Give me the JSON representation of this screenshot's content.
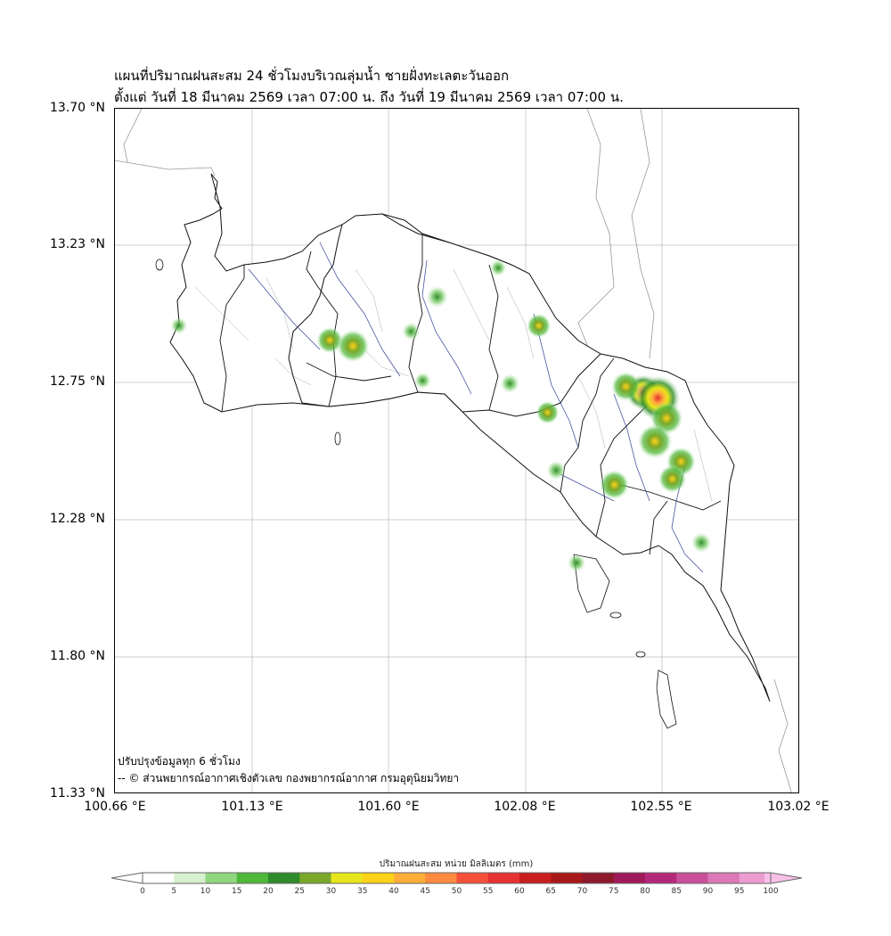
{
  "title": {
    "line1": "แผนที่ปริมาณฝนสะสม 24 ชั่วโมงบริเวณลุ่มน้ำ ชายฝั่งทะเลตะวันออก",
    "line2": "ตั้งแต่ วันที่ 18 มีนาคม 2569 เวลา 07:00 น. ถึง วันที่ 19 มีนาคม 2569 เวลา 07:00 น."
  },
  "axes": {
    "y_ticks": [
      "13.70 °N",
      "13.23 °N",
      "12.75 °N",
      "12.28 °N",
      "11.80 °N",
      "11.33 °N"
    ],
    "x_ticks": [
      "100.66 °E",
      "101.13 °E",
      "101.60 °E",
      "102.08 °E",
      "102.55 °E",
      "103.02 °E"
    ],
    "lat_range": [
      11.33,
      13.7
    ],
    "lon_range": [
      100.66,
      103.02
    ],
    "grid": true
  },
  "notes": {
    "update": "ปรับปรุงข้อมูลทุก 6 ชั่วโมง",
    "credit": "-- © ส่วนพยากรณ์อากาศเชิงตัวเลข กองพยากรณ์อากาศ กรมอุตุนิยมวิทยา"
  },
  "colorbar": {
    "title": "ปริมาณฝนสะสม หน่วย มิลลิเมตร (mm)",
    "ticks": [
      "0",
      "5",
      "10",
      "15",
      "20",
      "25",
      "30",
      "35",
      "40",
      "45",
      "50",
      "55",
      "60",
      "65",
      "70",
      "75",
      "80",
      "85",
      "90",
      "95",
      "100"
    ],
    "colors": [
      "#ffffff",
      "#d7f0cf",
      "#8fd67e",
      "#4db83a",
      "#2e8b2a",
      "#7aa82a",
      "#e6e61a",
      "#ffd21a",
      "#ffae3a",
      "#ff8a40",
      "#f5503a",
      "#e63232",
      "#c81e1e",
      "#a81818",
      "#8c1a2a",
      "#a01a5a",
      "#b4287a",
      "#c8509a",
      "#dc78b8",
      "#ec9cd0",
      "#f8c0e8"
    ]
  },
  "rain_cells_legend": "rainfall in mm",
  "rain_cells": [
    {
      "lat": 13.05,
      "lon": 101.77,
      "mm": 18
    },
    {
      "lat": 12.9,
      "lon": 101.4,
      "mm": 25
    },
    {
      "lat": 12.88,
      "lon": 101.48,
      "mm": 35
    },
    {
      "lat": 12.93,
      "lon": 101.68,
      "mm": 12
    },
    {
      "lat": 12.95,
      "lon": 102.12,
      "mm": 22
    },
    {
      "lat": 13.15,
      "lon": 101.98,
      "mm": 10
    },
    {
      "lat": 12.75,
      "lon": 102.02,
      "mm": 14
    },
    {
      "lat": 12.72,
      "lon": 102.48,
      "mm": 40
    },
    {
      "lat": 12.74,
      "lon": 102.42,
      "mm": 30
    },
    {
      "lat": 12.7,
      "lon": 102.53,
      "mm": 55
    },
    {
      "lat": 12.63,
      "lon": 102.56,
      "mm": 35
    },
    {
      "lat": 12.55,
      "lon": 102.52,
      "mm": 38
    },
    {
      "lat": 12.48,
      "lon": 102.61,
      "mm": 30
    },
    {
      "lat": 12.42,
      "lon": 102.58,
      "mm": 28
    },
    {
      "lat": 12.4,
      "lon": 102.38,
      "mm": 30
    },
    {
      "lat": 12.65,
      "lon": 102.15,
      "mm": 20
    },
    {
      "lat": 12.45,
      "lon": 102.18,
      "mm": 14
    },
    {
      "lat": 12.2,
      "lon": 102.68,
      "mm": 15
    },
    {
      "lat": 12.13,
      "lon": 102.25,
      "mm": 12
    },
    {
      "lat": 12.95,
      "lon": 100.88,
      "mm": 10
    },
    {
      "lat": 12.76,
      "lon": 101.72,
      "mm": 10
    }
  ]
}
